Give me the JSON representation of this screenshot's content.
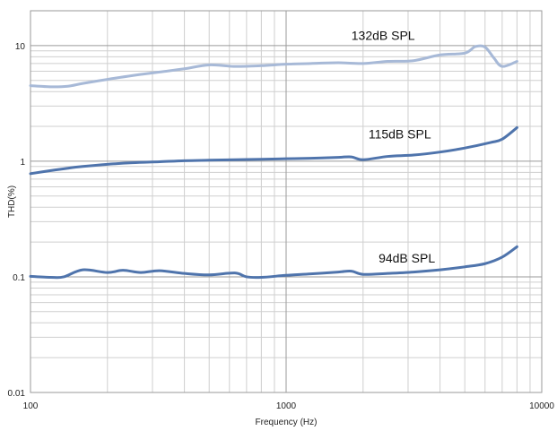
{
  "chart_data": {
    "type": "line",
    "title": "",
    "xlabel": "Frequency (Hz)",
    "ylabel": "THD(%)",
    "x_scale": "log",
    "y_scale": "log",
    "xlim": [
      100,
      10000
    ],
    "ylim": [
      0.01,
      20
    ],
    "x_ticks": [
      100,
      1000,
      10000
    ],
    "x_tick_labels": [
      "100",
      "1000",
      "10000"
    ],
    "y_ticks": [
      0.01,
      0.1,
      1,
      10
    ],
    "y_tick_labels": [
      "0.01",
      "0.1",
      "1",
      "10"
    ],
    "grid": true,
    "legend": "none",
    "series": [
      {
        "name": "132dB SPL",
        "color": "#a7b9d7",
        "x": [
          100,
          120,
          140,
          160,
          200,
          250,
          320,
          400,
          500,
          630,
          800,
          1000,
          1250,
          1600,
          2000,
          2500,
          3150,
          4000,
          5000,
          5500,
          6000,
          6500,
          7000,
          8000
        ],
        "values": [
          4.5,
          4.4,
          4.45,
          4.7,
          5.1,
          5.5,
          5.9,
          6.3,
          6.8,
          6.6,
          6.7,
          6.9,
          7.0,
          7.1,
          7.0,
          7.3,
          7.4,
          8.3,
          8.6,
          9.8,
          9.7,
          7.8,
          6.6,
          7.3
        ]
      },
      {
        "name": "115dB SPL",
        "color": "#4f74ac",
        "x": [
          100,
          120,
          140,
          160,
          200,
          250,
          320,
          400,
          500,
          630,
          800,
          1000,
          1250,
          1600,
          1800,
          2000,
          2500,
          3150,
          4000,
          5000,
          6300,
          7000,
          8000
        ],
        "values": [
          0.78,
          0.83,
          0.87,
          0.9,
          0.94,
          0.97,
          0.99,
          1.01,
          1.02,
          1.03,
          1.04,
          1.05,
          1.06,
          1.08,
          1.09,
          1.03,
          1.1,
          1.13,
          1.2,
          1.3,
          1.45,
          1.55,
          1.95
        ]
      },
      {
        "name": "94dB SPL",
        "color": "#4f74ac",
        "x": [
          100,
          120,
          135,
          160,
          200,
          230,
          270,
          320,
          400,
          500,
          630,
          700,
          800,
          1000,
          1250,
          1600,
          1800,
          2000,
          2500,
          3150,
          4000,
          5000,
          6000,
          7000,
          8000
        ],
        "values": [
          0.101,
          0.099,
          0.1,
          0.115,
          0.109,
          0.114,
          0.109,
          0.113,
          0.107,
          0.104,
          0.108,
          0.1,
          0.099,
          0.103,
          0.106,
          0.11,
          0.112,
          0.105,
          0.107,
          0.11,
          0.115,
          0.122,
          0.13,
          0.148,
          0.182
        ]
      }
    ],
    "annotations": [
      {
        "text": "132dB SPL",
        "x": 1800,
        "y": 11.2,
        "series": "132dB SPL"
      },
      {
        "text": "115dB SPL",
        "x": 2100,
        "y": 1.57,
        "series": "115dB SPL"
      },
      {
        "text": "94dB SPL",
        "x": 2300,
        "y": 0.133,
        "series": "94dB SPL"
      }
    ]
  }
}
